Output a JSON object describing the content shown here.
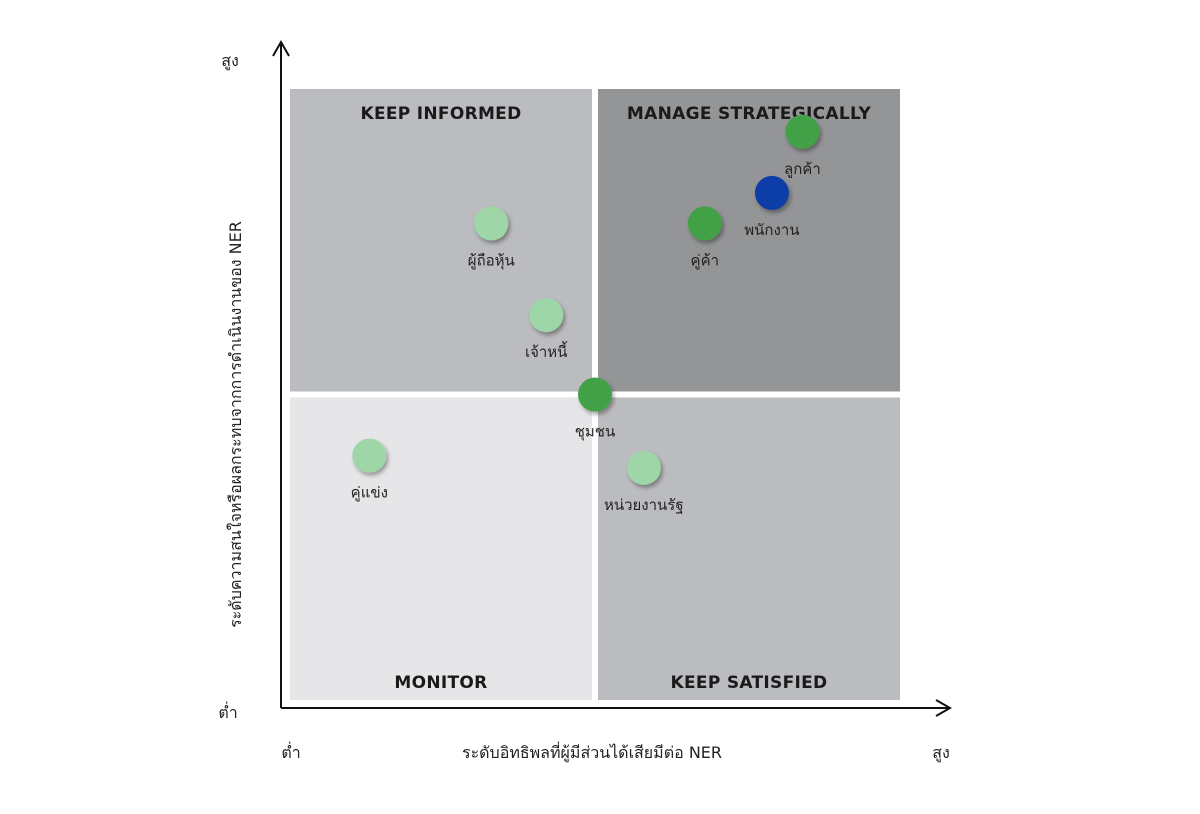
{
  "chart_data": {
    "type": "scatter",
    "xlabel": "ระดับอิทธิพลที่ผู้มีส่วนได้เสียมีต่อ NER",
    "ylabel": "ระดับความสนใจหรือผลกระทบจากการดำเนินงานของ NER",
    "x_low_label": "ต่ำ",
    "x_high_label": "สูง",
    "y_low_label": "ต่ำ",
    "y_high_label": "สูง",
    "xlim": [
      0,
      10
    ],
    "ylim": [
      0,
      10
    ],
    "quadrants": [
      {
        "key": "top_left",
        "title": "KEEP INFORMED",
        "color": "#bbbcbf"
      },
      {
        "key": "top_right",
        "title": "MANAGE STRATEGICALLY",
        "color": "#949597"
      },
      {
        "key": "bottom_left",
        "title": "MONITOR",
        "color": "#e6e6e8"
      },
      {
        "key": "bottom_right",
        "title": "KEEP SATISFIED",
        "color": "#bbbcbf"
      }
    ],
    "points": [
      {
        "label": "ลูกค้า",
        "x": 8.4,
        "y": 9.3,
        "color": "#43a047"
      },
      {
        "label": "พนักงาน",
        "x": 7.9,
        "y": 8.3,
        "color": "#0d3ca6"
      },
      {
        "label": "คู่ค้า",
        "x": 6.8,
        "y": 7.8,
        "color": "#43a047"
      },
      {
        "label": "ผู้ถือหุ้น",
        "x": 3.3,
        "y": 7.8,
        "color": "#9fd6a8"
      },
      {
        "label": "เจ้าหนี้",
        "x": 4.2,
        "y": 6.3,
        "color": "#9fd6a8"
      },
      {
        "label": "ชุมชน",
        "x": 5.0,
        "y": 5.0,
        "color": "#43a047"
      },
      {
        "label": "หน่วยงานรัฐ",
        "x": 5.8,
        "y": 3.8,
        "color": "#9fd6a8"
      },
      {
        "label": "คู่แข่ง",
        "x": 1.3,
        "y": 4.0,
        "color": "#9fd6a8"
      }
    ],
    "grid": false,
    "legend": "none"
  }
}
